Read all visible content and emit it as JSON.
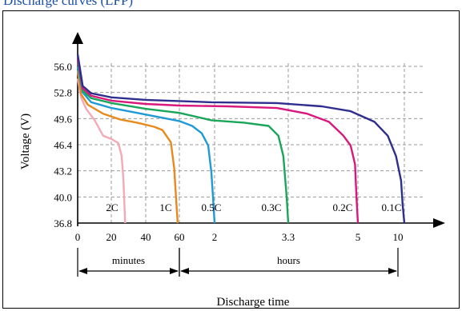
{
  "title": "Discharge curves (LFP)",
  "chart_data": {
    "type": "line",
    "ylabel": "Voltage (V)",
    "xlabel": "Discharge time",
    "y_ticks": [
      "56.0",
      "52.8",
      "49.6",
      "46.4",
      "43.2",
      "40.0",
      "36.8"
    ],
    "ylim": [
      36.8,
      56.0
    ],
    "x_ticks": [
      "0",
      "20",
      "40",
      "60",
      "2",
      "3.3",
      "5",
      "10"
    ],
    "x_segments": [
      {
        "label": "minutes",
        "from": "0",
        "to": "60"
      },
      {
        "label": "hours",
        "from": "60",
        "to": "10"
      }
    ],
    "grid": true,
    "series": [
      {
        "name": "2C",
        "color": "#f4a9b4",
        "points": [
          [
            0,
            54.5
          ],
          [
            2,
            52.2
          ],
          [
            5,
            50.8
          ],
          [
            10,
            49.4
          ],
          [
            15,
            47.5
          ],
          [
            20,
            47.1
          ],
          [
            24,
            46.6
          ],
          [
            26,
            45.0
          ],
          [
            27,
            42.0
          ],
          [
            28,
            36.8
          ]
        ]
      },
      {
        "name": "1C",
        "color": "#e8891c",
        "points": [
          [
            0,
            55.5
          ],
          [
            2,
            52.6
          ],
          [
            6,
            51.3
          ],
          [
            15,
            50.2
          ],
          [
            25,
            49.5
          ],
          [
            35,
            49.1
          ],
          [
            45,
            48.6
          ],
          [
            50,
            48.2
          ],
          [
            55,
            46.7
          ],
          [
            57,
            43.5
          ],
          [
            58,
            40.0
          ],
          [
            59,
            36.8
          ]
        ]
      },
      {
        "name": "0.5C",
        "color": "#1f9ad6",
        "points": [
          [
            0,
            56.0
          ],
          [
            3,
            52.8
          ],
          [
            8,
            51.6
          ],
          [
            20,
            50.9
          ],
          [
            35,
            50.3
          ],
          [
            50,
            49.7
          ],
          [
            60,
            49.3
          ],
          [
            68,
            48.7
          ],
          [
            74,
            47.8
          ],
          [
            78,
            46.3
          ],
          [
            80,
            43.0
          ],
          [
            81,
            40.0
          ],
          [
            82,
            36.8
          ]
        ]
      },
      {
        "name": "0.3C",
        "color": "#1aa65a",
        "points": [
          [
            0,
            56.6
          ],
          [
            3,
            53.0
          ],
          [
            8,
            52.1
          ],
          [
            20,
            51.5
          ],
          [
            40,
            50.8
          ],
          [
            60,
            50.3
          ],
          [
            80,
            49.4
          ],
          [
            100,
            49.1
          ],
          [
            115,
            48.7
          ],
          [
            121,
            47.5
          ],
          [
            124,
            45.0
          ],
          [
            126,
            40.0
          ],
          [
            127,
            36.8
          ]
        ]
      },
      {
        "name": "0.2C",
        "color": "#d8187c",
        "points": [
          [
            0,
            57.0
          ],
          [
            3,
            53.3
          ],
          [
            8,
            52.4
          ],
          [
            20,
            51.8
          ],
          [
            40,
            51.4
          ],
          [
            60,
            51.2
          ],
          [
            90,
            51.1
          ],
          [
            120,
            50.9
          ],
          [
            140,
            50.2
          ],
          [
            155,
            49.2
          ],
          [
            165,
            47.5
          ],
          [
            170,
            46.3
          ],
          [
            173,
            44.0
          ],
          [
            174,
            40.0
          ],
          [
            175,
            36.8
          ]
        ]
      },
      {
        "name": "0.1C",
        "color": "#2e2e8e",
        "points": [
          [
            0,
            57.5
          ],
          [
            3,
            53.6
          ],
          [
            8,
            52.7
          ],
          [
            20,
            52.2
          ],
          [
            40,
            51.9
          ],
          [
            80,
            51.6
          ],
          [
            120,
            51.5
          ],
          [
            150,
            51.1
          ],
          [
            170,
            50.5
          ],
          [
            185,
            49.2
          ],
          [
            193,
            47.5
          ],
          [
            198,
            45.0
          ],
          [
            201,
            42.0
          ],
          [
            202,
            39.0
          ],
          [
            203,
            36.8
          ]
        ]
      }
    ]
  }
}
